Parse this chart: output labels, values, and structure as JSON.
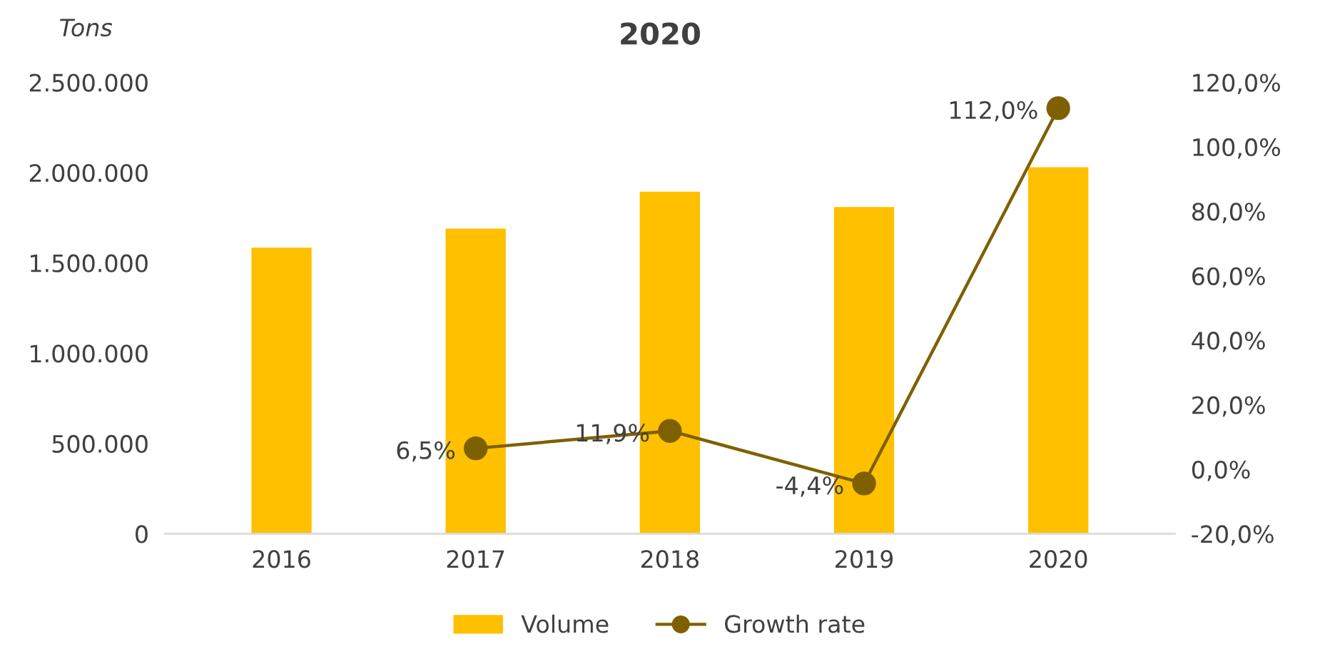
{
  "chart_data": {
    "type": "bar",
    "title": "2020",
    "ylabel": "Tons",
    "categories": [
      "2016",
      "2017",
      "2018",
      "2019",
      "2020"
    ],
    "series": [
      {
        "name": "Volume",
        "color": "#ffc000",
        "values": [
          1585000,
          1690000,
          1895000,
          1810000,
          2030000
        ]
      },
      {
        "name": "Growth rate",
        "type": "line",
        "axis": "y2",
        "color": "#7f6000",
        "marker": "circle",
        "values": [
          null,
          6.5,
          11.9,
          -4.4,
          112.0
        ],
        "value_labels": [
          null,
          "6,5%",
          "11,9%",
          "-4,4%",
          "112,0%"
        ]
      }
    ],
    "ylim": [
      0,
      2500000
    ],
    "yticks": [
      0,
      {
        "value": 500000,
        "label": "500.000"
      },
      {
        "value": 1000000,
        "label": "1.000.000"
      },
      {
        "value": 1500000,
        "label": "1.500.000"
      },
      {
        "value": 2000000,
        "label": "2.000.000"
      },
      {
        "value": 2500000,
        "label": "2.500.000"
      }
    ],
    "y2lim": [
      -20,
      120
    ],
    "y2ticks": [
      {
        "value": -20,
        "label": "-20,0%"
      },
      {
        "value": 0,
        "label": "0,0%"
      },
      {
        "value": 20,
        "label": "20,0%"
      },
      {
        "value": 40,
        "label": "40,0%"
      },
      {
        "value": 60,
        "label": "60,0%"
      },
      {
        "value": 80,
        "label": "80,0%"
      },
      {
        "value": 100,
        "label": "100,0%"
      },
      {
        "value": 120,
        "label": "120,0%"
      }
    ],
    "grid": false,
    "legend": "bottom"
  }
}
